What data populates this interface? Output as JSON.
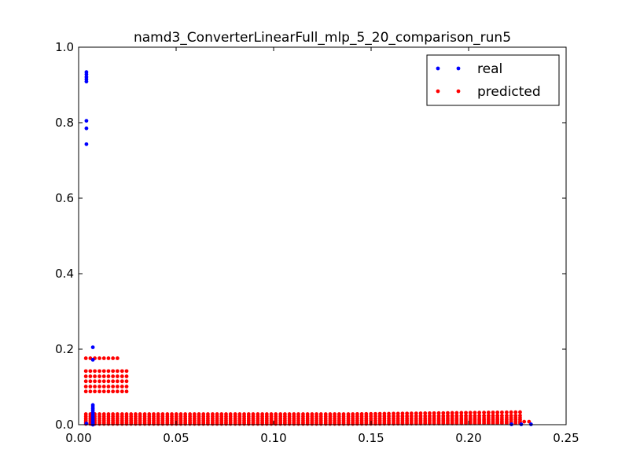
{
  "chart_data": {
    "type": "scatter",
    "title": "namd3_ConverterLinearFull_mlp_5_20_comparison_run5",
    "xlabel": "",
    "ylabel": "",
    "xlim": [
      0.0,
      0.25
    ],
    "ylim": [
      0.0,
      1.0
    ],
    "xticks": [
      0.0,
      0.05,
      0.1,
      0.15,
      0.2,
      0.25
    ],
    "xtick_labels": [
      "0.00",
      "0.05",
      "0.10",
      "0.15",
      "0.20",
      "0.25"
    ],
    "yticks": [
      0.0,
      0.2,
      0.4,
      0.6,
      0.8,
      1.0
    ],
    "ytick_labels": [
      "0.0",
      "0.2",
      "0.4",
      "0.6",
      "0.8",
      "1.0"
    ],
    "grid": false,
    "legend": {
      "position": "top-right",
      "entries": [
        "real",
        "predicted"
      ]
    },
    "series": [
      {
        "name": "real",
        "color": "#0000ff",
        "x_values": [
          0.004,
          0.004,
          0.004,
          0.004,
          0.004,
          0.004,
          0.004,
          0.004,
          0.004,
          0.0073,
          0.0073,
          0.0073,
          0.0073,
          0.0073,
          0.0073,
          0.0073,
          0.0073,
          0.0073,
          0.0073,
          0.0073,
          0.0073,
          0.0073,
          0.0073,
          0.0073,
          0.0073,
          0.222,
          0.227,
          0.232
        ],
        "y_values": [
          0.934,
          0.928,
          0.921,
          0.915,
          0.909,
          0.805,
          0.785,
          0.743,
          0.003,
          0.205,
          0.172,
          0.052,
          0.047,
          0.042,
          0.037,
          0.032,
          0.027,
          0.022,
          0.017,
          0.013,
          0.009,
          0.005,
          0.002,
          0.001,
          0.0,
          0.001,
          0.001,
          0.001
        ]
      },
      {
        "name": "predicted",
        "color": "#ff0000",
        "x_values": [],
        "y_values": []
      }
    ]
  }
}
